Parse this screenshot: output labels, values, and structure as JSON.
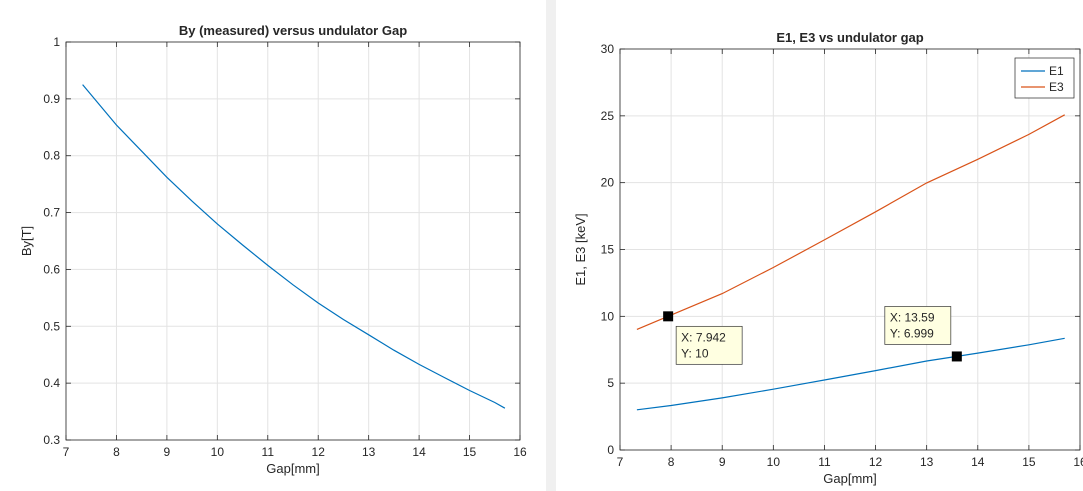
{
  "chart_data": [
    {
      "type": "line",
      "title": "By (measured) versus undulator Gap",
      "xlabel": "Gap[mm]",
      "ylabel": "By[T]",
      "xlim": [
        7,
        16
      ],
      "ylim": [
        0.3,
        1
      ],
      "grid": true,
      "xticks": [
        "7",
        "8",
        "9",
        "10",
        "11",
        "12",
        "13",
        "14",
        "15",
        "16"
      ],
      "yticks": [
        "0.3",
        "0.4",
        "0.5",
        "0.6",
        "0.7",
        "0.8",
        "0.9",
        "1"
      ],
      "series": [
        {
          "color": "#0072bd",
          "x": [
            7.33,
            8,
            8.5,
            9,
            9.5,
            10,
            10.5,
            11,
            11.5,
            12,
            12.5,
            13,
            13.5,
            14,
            14.5,
            15,
            15.5,
            15.7
          ],
          "y": [
            0.925,
            0.854,
            0.808,
            0.762,
            0.72,
            0.68,
            0.643,
            0.607,
            0.573,
            0.541,
            0.512,
            0.485,
            0.458,
            0.433,
            0.41,
            0.387,
            0.366,
            0.356
          ]
        }
      ]
    },
    {
      "type": "line",
      "title": "E1, E3 vs undulator gap",
      "xlabel": "Gap[mm]",
      "ylabel": "E1, E3 [keV]",
      "xlim": [
        7,
        16
      ],
      "ylim": [
        0,
        30
      ],
      "grid": true,
      "legend": "top-right",
      "xticks": [
        "7",
        "8",
        "9",
        "10",
        "11",
        "12",
        "13",
        "14",
        "15",
        "16"
      ],
      "yticks": [
        "0",
        "5",
        "10",
        "15",
        "20",
        "25",
        "30"
      ],
      "series": [
        {
          "name": "E1",
          "color": "#0072bd",
          "x": [
            7.33,
            8,
            9,
            10,
            11,
            12,
            13,
            13.59,
            14,
            15,
            15.7
          ],
          "y": [
            3.01,
            3.33,
            3.9,
            4.55,
            5.24,
            5.94,
            6.66,
            6.999,
            7.25,
            7.87,
            8.36
          ]
        },
        {
          "name": "E3",
          "color": "#d95319",
          "x": [
            7.33,
            7.942,
            9,
            10,
            11,
            12,
            13,
            14,
            15,
            15.7
          ],
          "y": [
            9.02,
            10,
            11.7,
            13.65,
            15.72,
            17.82,
            19.98,
            21.75,
            23.61,
            25.08
          ]
        }
      ],
      "datatips": [
        {
          "x": 7.942,
          "y": 10,
          "label_x": "X: 7.942",
          "label_y": "Y: 10"
        },
        {
          "x": 13.59,
          "y": 6.999,
          "label_x": "X: 13.59",
          "label_y": "Y: 6.999"
        }
      ]
    }
  ]
}
